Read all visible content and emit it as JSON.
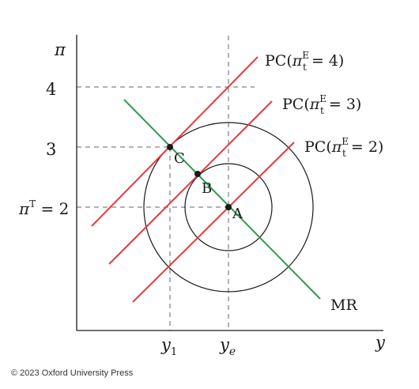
{
  "axes": {
    "y_axis_label": "π",
    "x_axis_label": "y",
    "y_ticks": [
      "4",
      "3"
    ],
    "target_label": {
      "prefix": "π",
      "sup": "T",
      "suffix": " = 2"
    },
    "x_ticks": {
      "y1": {
        "base": "y",
        "sub": "1"
      },
      "ye": {
        "base": "y",
        "sub": "e"
      }
    }
  },
  "curves": {
    "pc4": {
      "prefix": "PC(",
      "pi": "π",
      "sup": "E",
      "sub": "t",
      "suffix": " = 4)"
    },
    "pc3": {
      "prefix": "PC(",
      "pi": "π",
      "sup": "E",
      "sub": "t",
      "suffix": " = 3)"
    },
    "pc2": {
      "prefix": "PC(",
      "pi": "π",
      "sup": "E",
      "sub": "t",
      "suffix": " = 2)"
    },
    "mr": "MR"
  },
  "points": {
    "a": "A",
    "b": "B",
    "c": "C"
  },
  "colors": {
    "pc_lines": "#e8383d",
    "mr_line": "#2f9a4c",
    "axes": "#1a1a1a",
    "guides": "#666666"
  },
  "footer": {
    "copyright": "© 2023 Oxford University Press"
  }
}
